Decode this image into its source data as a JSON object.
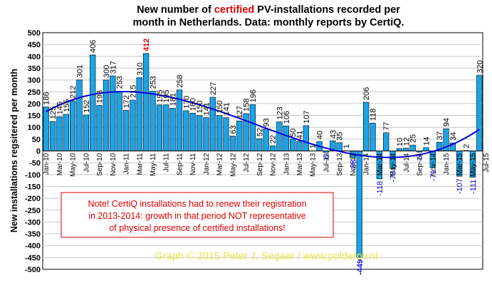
{
  "chart_data": {
    "type": "bar",
    "title_parts": [
      "New number of ",
      "certified",
      " PV-installations recorded per"
    ],
    "title_line2": "month in Netherlands. Data: monthly reports by CertiQ.",
    "ylabel": "New installations regsitered per month",
    "ylim": [
      -500,
      500
    ],
    "yticks": [
      500,
      450,
      400,
      350,
      300,
      250,
      200,
      150,
      100,
      50,
      0,
      -50,
      -100,
      -150,
      -200,
      -250,
      -300,
      -350,
      -400,
      -450,
      -500
    ],
    "grid": true,
    "bar_color": "#1aa3e8",
    "highlight_color": "#e00000",
    "trend_color": "#0000e0",
    "x_tick_labels": [
      "Jan-10",
      "Mar-10",
      "May-10",
      "Jul-10",
      "Sep-10",
      "Nov-10",
      "Jan-11",
      "Mar-11",
      "May-11",
      "Jul-11",
      "Sep-11",
      "Nov-11",
      "Jan-12",
      "Mar-12",
      "May-12",
      "Jul-12",
      "Sep-12",
      "Nov-12",
      "Jan-13",
      "Mar-13",
      "May-13",
      "Jul-13",
      "Sep-13",
      "Nov-13",
      "Jan-14",
      "Mar-14",
      "May-14",
      "Jul-14",
      "Sep-14",
      "Nov-14",
      "Jan-15",
      "Mar-15",
      "May-15",
      "Jul-15"
    ],
    "values": [
      186,
      125,
      145,
      155,
      212,
      301,
      152,
      406,
      193,
      300,
      317,
      253,
      172,
      215,
      310,
      412,
      253,
      195,
      195,
      181,
      258,
      170,
      160,
      150,
      141,
      227,
      150,
      141,
      63,
      127,
      158,
      196,
      52,
      93,
      22,
      123,
      106,
      50,
      41,
      107,
      1,
      40,
      -6,
      43,
      35,
      1,
      -28,
      -449,
      206,
      118,
      -118,
      77,
      -75,
      10,
      12,
      25,
      -5,
      14,
      -71,
      37,
      94,
      34,
      -107,
      2,
      -111,
      320
    ],
    "data_labels": [
      "186",
      "125",
      "145",
      "155",
      "212",
      "301",
      "152",
      "406",
      "193",
      "300",
      "317",
      "253",
      "172",
      "215",
      "310",
      "412",
      "253",
      "195",
      "195",
      "181",
      "258",
      "170",
      "160",
      "150",
      "141",
      "227",
      "150",
      "141",
      "63",
      "127",
      "158",
      "196",
      "52",
      "93",
      "22",
      "123",
      "106",
      "50",
      "41",
      "107",
      "1",
      "40",
      "-6",
      "43",
      "35",
      "1",
      "-28",
      "-449",
      "206",
      "118",
      "-118",
      "77",
      "-75",
      "10",
      "12",
      "25",
      "-5",
      "14",
      "-71",
      "37",
      "94",
      "34",
      "-107",
      "2",
      "-111",
      "320"
    ],
    "highlight_index": 15,
    "trendline": true,
    "note": [
      "Note! CertiQ installations had to renew their registration",
      "in 2013-2014: growth in that period NOT representative",
      "of physical presence of certified installations!"
    ],
    "credit": "Graph © 2015 Peter J. Segaar / www.polderpv.nl"
  }
}
